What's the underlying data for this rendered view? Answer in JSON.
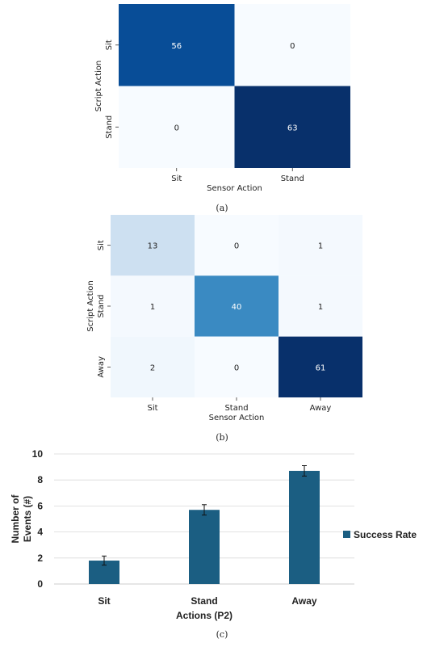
{
  "chart_data": [
    {
      "type": "heatmap",
      "panel_caption": "(a)",
      "xlabel": "Sensor Action",
      "ylabel": "Script Action",
      "x_categories": [
        "Sit",
        "Stand"
      ],
      "y_categories": [
        "Sit",
        "Stand"
      ],
      "values": [
        [
          56,
          0
        ],
        [
          0,
          63
        ]
      ],
      "colormap": "Blues"
    },
    {
      "type": "heatmap",
      "panel_caption": "(b)",
      "xlabel": "Sensor Action",
      "ylabel": "Script Action",
      "x_categories": [
        "Sit",
        "Stand",
        "Away"
      ],
      "y_categories": [
        "Sit",
        "Stand",
        "Away"
      ],
      "values": [
        [
          13,
          0,
          1
        ],
        [
          1,
          40,
          1
        ],
        [
          2,
          0,
          61
        ]
      ],
      "colormap": "Blues"
    },
    {
      "type": "bar",
      "panel_caption": "(c)",
      "categories": [
        "Sit",
        "Stand",
        "Away"
      ],
      "xlabel": "Actions (P2)",
      "ylabel": "Number of Events (#)",
      "ylabel_lines": [
        "Number of",
        "Events (#)"
      ],
      "ylim": [
        0,
        10
      ],
      "yticks": [
        0,
        2,
        4,
        6,
        8,
        10
      ],
      "grid": true,
      "legend_position": "right",
      "series": [
        {
          "name": "Success Rate",
          "values": [
            1.8,
            5.7,
            8.7
          ],
          "errors": [
            0.35,
            0.4,
            0.4
          ],
          "color": "#1b5e82"
        }
      ]
    }
  ]
}
